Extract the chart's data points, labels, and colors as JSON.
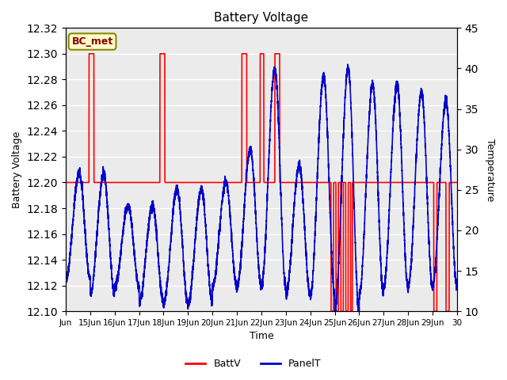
{
  "title": "Battery Voltage",
  "xlabel": "Time",
  "ylabel_left": "Battery Voltage",
  "ylabel_right": "Temperature",
  "xlim": [
    0,
    16
  ],
  "ylim_left": [
    12.1,
    12.32
  ],
  "ylim_right": [
    10,
    45
  ],
  "yticks_left": [
    12.1,
    12.12,
    12.14,
    12.16,
    12.18,
    12.2,
    12.22,
    12.24,
    12.26,
    12.28,
    12.3,
    12.32
  ],
  "yticks_right": [
    10,
    15,
    20,
    25,
    30,
    35,
    40,
    45
  ],
  "xtick_labels": [
    "Jun",
    "15Jun",
    "16Jun",
    "17Jun",
    "18Jun",
    "19Jun",
    "20Jun",
    "21Jun",
    "22Jun",
    "23Jun",
    "24Jun",
    "25Jun",
    "26Jun",
    "27Jun",
    "28Jun",
    "29Jun",
    "30"
  ],
  "annotation_text": "BC_met",
  "annotation_bg": "#ffffcc",
  "annotation_border": "#888800",
  "legend_labels": [
    "BattV",
    "PanelT"
  ],
  "legend_colors": [
    "#ff0000",
    "#0000cc"
  ],
  "bg_color": "#ebebeb",
  "line_color_batt": "#ff0000",
  "line_color_panel": "#0000cc",
  "batt_base": 12.2
}
